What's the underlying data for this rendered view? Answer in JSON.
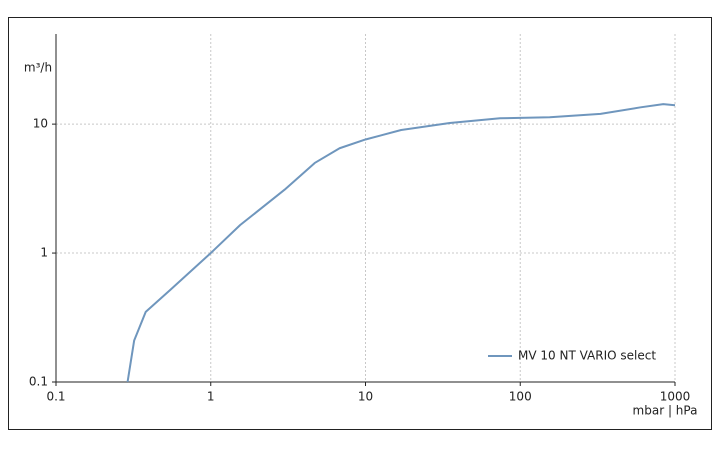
{
  "chart_data": {
    "type": "line",
    "x_label": "mbar | hPa",
    "y_label": "m³/h",
    "x": [
      0.29,
      0.32,
      0.38,
      0.55,
      1,
      1.55,
      3,
      4.7,
      6.8,
      10,
      17,
      35,
      74,
      155,
      330,
      600,
      840,
      1000
    ],
    "series": [
      {
        "name": "MV 10 NT VARIO select",
        "color": "#6f96bd",
        "values": [
          0.1,
          0.21,
          0.35,
          0.52,
          1,
          1.65,
          3.1,
          5,
          6.5,
          7.6,
          9,
          10.2,
          11.1,
          11.3,
          12,
          13.5,
          14.3,
          14
        ]
      }
    ],
    "xlim": [
      0.1,
      1000
    ],
    "ylim": [
      0.1,
      50
    ],
    "xticks": [
      0.1,
      1,
      10,
      100,
      1000
    ],
    "yticks": [
      0.1,
      1,
      10
    ],
    "xscale": "log",
    "yscale": "log",
    "grid": true,
    "legend": "lower right"
  }
}
